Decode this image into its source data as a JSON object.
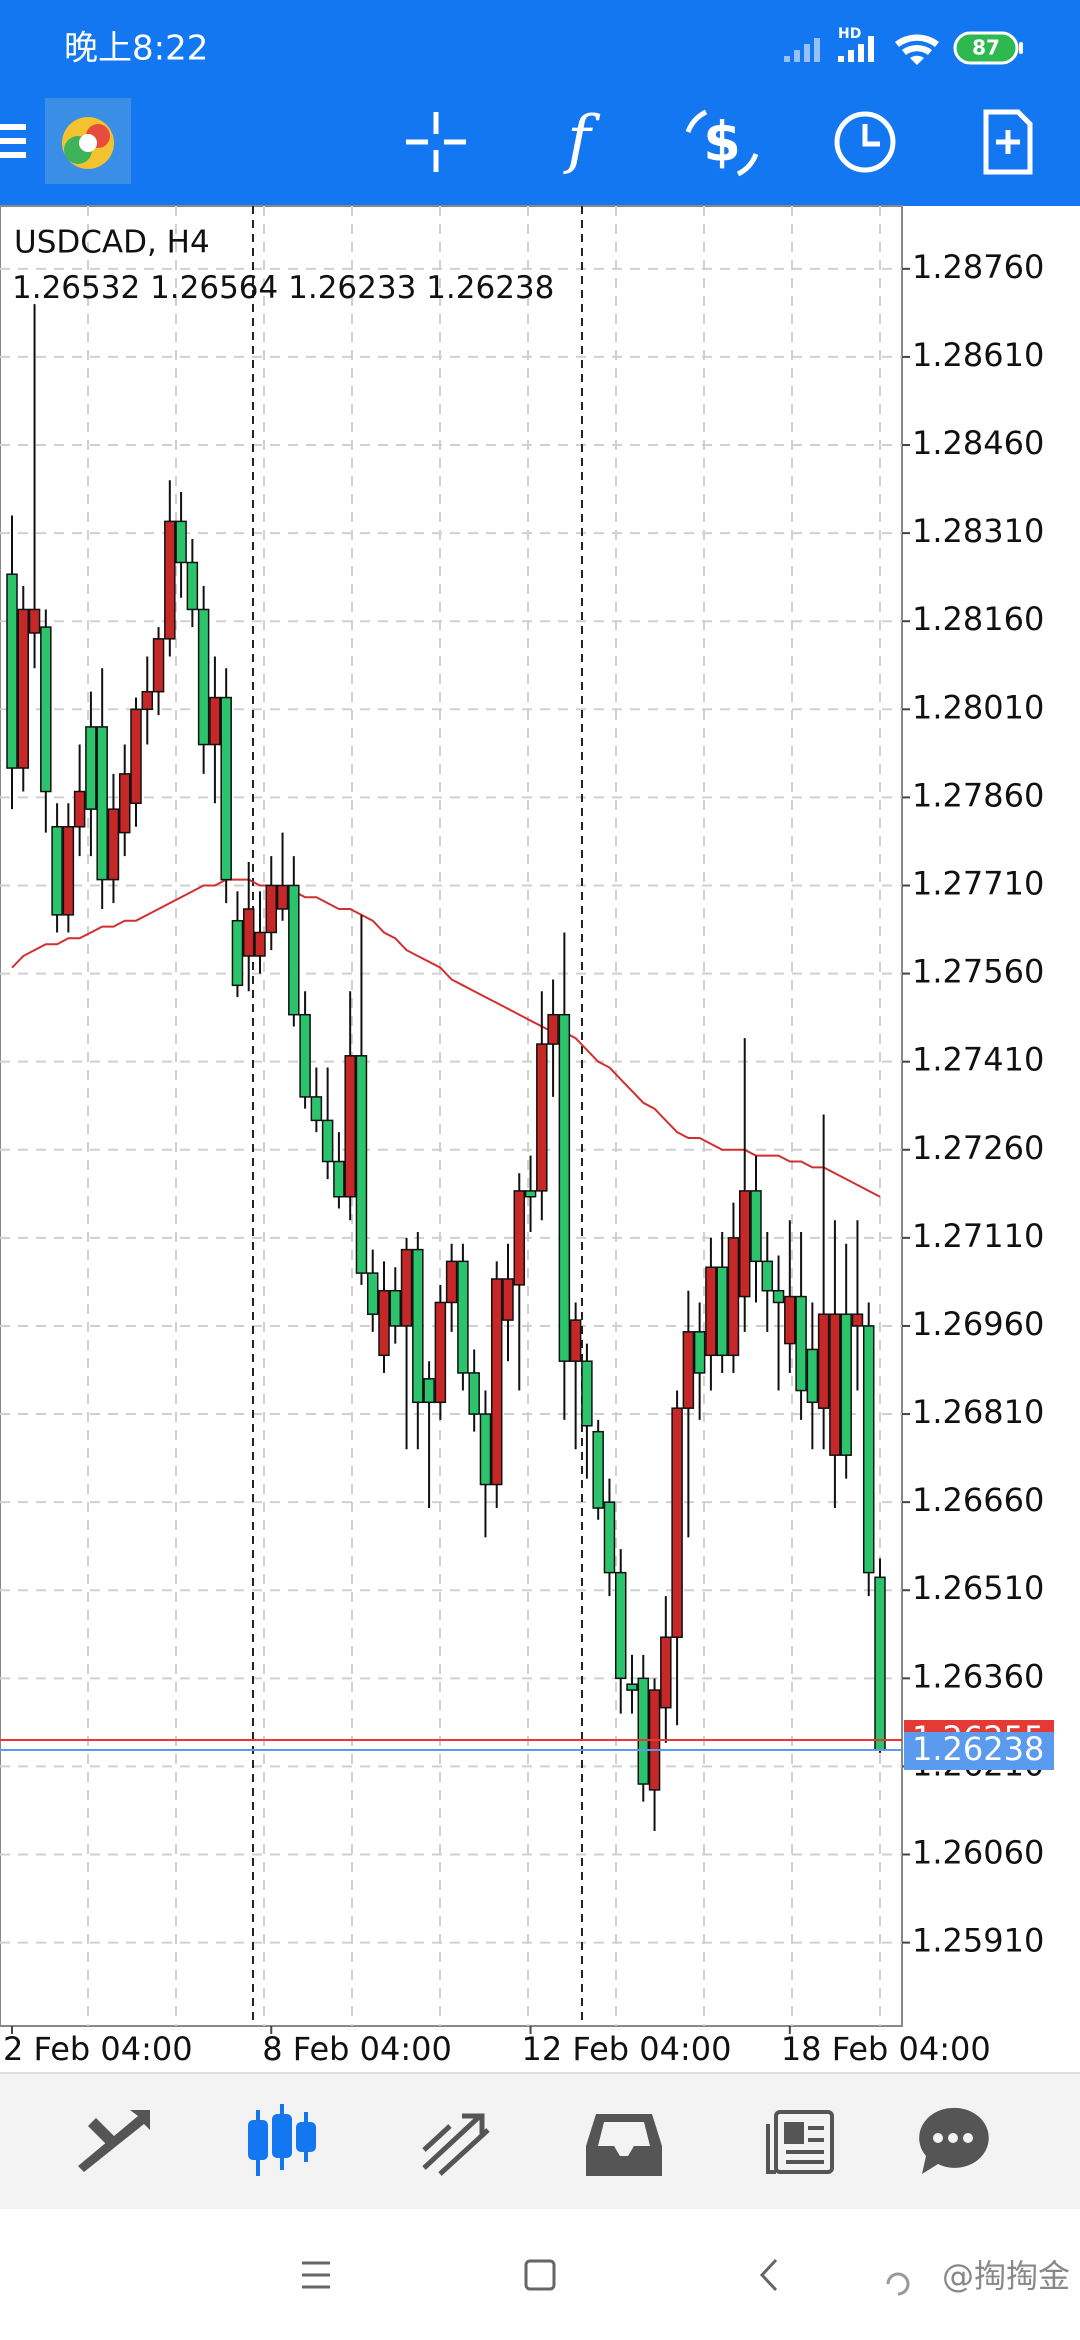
{
  "status_bar": {
    "time": "晚上8:22",
    "network": "HD",
    "battery": "87"
  },
  "chart_data": {
    "type": "candlestick",
    "symbol": "USDCAD, H4",
    "up_color": "#c62828",
    "down_color": "#2bc46d",
    "categories": [
      "2 Feb 04:00",
      null,
      null,
      null,
      null,
      null,
      null,
      null,
      null,
      null,
      null,
      null,
      null,
      null,
      null,
      null,
      null,
      null,
      null,
      null,
      null,
      null,
      null,
      "8 Feb 04:00",
      null,
      null,
      null,
      null,
      null,
      null,
      null,
      null,
      null,
      null,
      null,
      null,
      null,
      null,
      null,
      null,
      null,
      null,
      null,
      null,
      null,
      null,
      "12 Feb 04:00",
      null,
      null,
      null,
      null,
      null,
      null,
      null,
      null,
      null,
      null,
      null,
      null,
      null,
      null,
      null,
      null,
      null,
      null,
      null,
      null,
      null,
      null,
      "18 Feb 04:00",
      null,
      null,
      null,
      null,
      null,
      null,
      null,
      null
    ],
    "ohlc": [
      [
        1.2824,
        1.2834,
        1.2784,
        1.2791
      ],
      [
        1.2791,
        1.2822,
        1.2787,
        1.2818
      ],
      [
        1.2814,
        1.287,
        1.2808,
        1.2818
      ],
      [
        1.2815,
        1.2818,
        1.278,
        1.2787
      ],
      [
        1.2781,
        1.2785,
        1.2763,
        1.2766
      ],
      [
        1.2766,
        1.2785,
        1.2763,
        1.2781
      ],
      [
        1.2781,
        1.2795,
        1.2776,
        1.2787
      ],
      [
        1.2798,
        1.2804,
        1.2776,
        1.2784
      ],
      [
        1.2798,
        1.2808,
        1.2767,
        1.2772
      ],
      [
        1.2772,
        1.279,
        1.2768,
        1.2784
      ],
      [
        1.278,
        1.2795,
        1.2776,
        1.279
      ],
      [
        1.2785,
        1.2803,
        1.2781,
        1.2801
      ],
      [
        1.2801,
        1.281,
        1.2795,
        1.2804
      ],
      [
        1.2804,
        1.2815,
        1.28,
        1.2813
      ],
      [
        1.2813,
        1.284,
        1.281,
        1.2833
      ],
      [
        1.2833,
        1.2838,
        1.282,
        1.2826
      ],
      [
        1.2826,
        1.283,
        1.2815,
        1.2818
      ],
      [
        1.2818,
        1.2822,
        1.279,
        1.2795
      ],
      [
        1.2795,
        1.281,
        1.2785,
        1.2803
      ],
      [
        1.2803,
        1.2808,
        1.2768,
        1.2772
      ],
      [
        1.2765,
        1.277,
        1.2752,
        1.2754
      ],
      [
        1.2759,
        1.2775,
        1.2753,
        1.2767
      ],
      [
        1.2759,
        1.277,
        1.2756,
        1.2763
      ],
      [
        1.2763,
        1.2776,
        1.276,
        1.2771
      ],
      [
        1.2767,
        1.278,
        1.2765,
        1.2771
      ],
      [
        1.2771,
        1.2776,
        1.2747,
        1.2749
      ],
      [
        1.2749,
        1.2753,
        1.2733,
        1.2735
      ],
      [
        1.2735,
        1.274,
        1.2729,
        1.2731
      ],
      [
        1.2731,
        1.274,
        1.2721,
        1.2724
      ],
      [
        1.2724,
        1.2729,
        1.2716,
        1.2718
      ],
      [
        1.2718,
        1.2753,
        1.2714,
        1.2742
      ],
      [
        1.2742,
        1.2766,
        1.2703,
        1.2705
      ],
      [
        1.2705,
        1.2709,
        1.2695,
        1.2698
      ],
      [
        1.2691,
        1.2707,
        1.2688,
        1.2702
      ],
      [
        1.2702,
        1.2706,
        1.2693,
        1.2696
      ],
      [
        1.2696,
        1.2711,
        1.2675,
        1.2709
      ],
      [
        1.2709,
        1.2712,
        1.2675,
        1.2683
      ],
      [
        1.2687,
        1.269,
        1.2665,
        1.2683
      ],
      [
        1.2683,
        1.2703,
        1.268,
        1.27
      ],
      [
        1.27,
        1.271,
        1.2695,
        1.2707
      ],
      [
        1.2707,
        1.271,
        1.2685,
        1.2688
      ],
      [
        1.2688,
        1.2692,
        1.2678,
        1.2681
      ],
      [
        1.2681,
        1.2685,
        1.266,
        1.2669
      ],
      [
        1.2669,
        1.2707,
        1.2665,
        1.2704
      ],
      [
        1.2697,
        1.271,
        1.269,
        1.2704
      ],
      [
        1.2703,
        1.2722,
        1.2685,
        1.2719
      ],
      [
        1.2719,
        1.2725,
        1.2712,
        1.2718
      ],
      [
        1.2719,
        1.2753,
        1.2714,
        1.2744
      ],
      [
        1.2744,
        1.2755,
        1.2735,
        1.2749
      ],
      [
        1.2749,
        1.2763,
        1.268,
        1.269
      ],
      [
        1.269,
        1.27,
        1.2675,
        1.2697
      ],
      [
        1.269,
        1.2693,
        1.267,
        1.2679
      ],
      [
        1.2678,
        1.268,
        1.2663,
        1.2665
      ],
      [
        1.2666,
        1.267,
        1.265,
        1.2654
      ],
      [
        1.2654,
        1.2658,
        1.263,
        1.2636
      ],
      [
        1.2635,
        1.264,
        1.263,
        1.2634
      ],
      [
        1.2636,
        1.264,
        1.2615,
        1.2618
      ],
      [
        1.2617,
        1.2636,
        1.261,
        1.2634
      ],
      [
        1.2631,
        1.265,
        1.2625,
        1.2643
      ],
      [
        1.2643,
        1.2685,
        1.2628,
        1.2682
      ],
      [
        1.2682,
        1.2702,
        1.266,
        1.2695
      ],
      [
        1.2695,
        1.27,
        1.268,
        1.2688
      ],
      [
        1.2691,
        1.2711,
        1.2685,
        1.2706
      ],
      [
        1.2706,
        1.2712,
        1.2688,
        1.2691
      ],
      [
        1.2691,
        1.2717,
        1.2688,
        1.2711
      ],
      [
        1.2701,
        1.2745,
        1.2695,
        1.2719
      ],
      [
        1.2719,
        1.2725,
        1.27,
        1.2707
      ],
      [
        1.2707,
        1.2712,
        1.2695,
        1.2702
      ],
      [
        1.2702,
        1.2708,
        1.2685,
        1.27
      ],
      [
        1.2693,
        1.2714,
        1.2688,
        1.2701
      ],
      [
        1.2701,
        1.2712,
        1.268,
        1.2685
      ],
      [
        1.2692,
        1.27,
        1.2675,
        1.2683
      ],
      [
        1.2682,
        1.2732,
        1.2675,
        1.2698
      ],
      [
        1.2674,
        1.2714,
        1.2665,
        1.2698
      ],
      [
        1.2698,
        1.271,
        1.267,
        1.2674
      ],
      [
        1.2696,
        1.2714,
        1.2685,
        1.2698
      ],
      [
        1.2696,
        1.27,
        1.265,
        1.2654
      ],
      [
        1.26532,
        1.26564,
        1.26233,
        1.26238
      ]
    ],
    "ma": {
      "color": "#d32f2f",
      "values": [
        1.2757,
        1.2759,
        1.276,
        1.2761,
        1.2761,
        1.2762,
        1.2762,
        1.2763,
        1.2764,
        1.2764,
        1.2765,
        1.2765,
        1.2766,
        1.2767,
        1.2768,
        1.2769,
        1.277,
        1.2771,
        1.2771,
        1.2772,
        1.2772,
        1.2772,
        1.2771,
        1.2771,
        1.277,
        1.277,
        1.2769,
        1.2769,
        1.2768,
        1.2767,
        1.2767,
        1.2766,
        1.2765,
        1.2763,
        1.2762,
        1.276,
        1.2759,
        1.2758,
        1.2757,
        1.2755,
        1.2754,
        1.2753,
        1.2752,
        1.2751,
        1.275,
        1.2749,
        1.2748,
        1.2747,
        1.2746,
        1.2746,
        1.2745,
        1.2743,
        1.2741,
        1.274,
        1.2738,
        1.2736,
        1.2734,
        1.2733,
        1.2731,
        1.2729,
        1.2728,
        1.2728,
        1.2727,
        1.2726,
        1.2726,
        1.2726,
        1.2725,
        1.2725,
        1.2725,
        1.2724,
        1.2724,
        1.2723,
        1.2723,
        1.2722,
        1.2721,
        1.272,
        1.2719,
        1.2718
      ]
    },
    "ask": 1.26255,
    "ask_color": "#e53935",
    "bid_color": "#5b9bef",
    "ylim": [
      1.25768,
      1.28867
    ],
    "yticks": [
      {
        "value": 1.2876,
        "label": "1.28760"
      },
      {
        "value": 1.2861,
        "label": "1.28610"
      },
      {
        "value": 1.2846,
        "label": "1.28460"
      },
      {
        "value": 1.2831,
        "label": "1.28310"
      },
      {
        "value": 1.2816,
        "label": "1.28160"
      },
      {
        "value": 1.2801,
        "label": "1.28010"
      },
      {
        "value": 1.2786,
        "label": "1.27860"
      },
      {
        "value": 1.2771,
        "label": "1.27710"
      },
      {
        "value": 1.2756,
        "label": "1.27560"
      },
      {
        "value": 1.2741,
        "label": "1.27410"
      },
      {
        "value": 1.2726,
        "label": "1.27260"
      },
      {
        "value": 1.2711,
        "label": "1.27110"
      },
      {
        "value": 1.2696,
        "label": "1.26960"
      },
      {
        "value": 1.2681,
        "label": "1.26810"
      },
      {
        "value": 1.2666,
        "label": "1.26660"
      },
      {
        "value": 1.2651,
        "label": "1.26510"
      },
      {
        "value": 1.2636,
        "label": "1.26360"
      },
      {
        "value": 1.2621,
        "label": "1.26210"
      },
      {
        "value": 1.2606,
        "label": "1.26060"
      },
      {
        "value": 1.2591,
        "label": "1.25910"
      }
    ],
    "grid": true
  },
  "watermark": "@掏掏金"
}
